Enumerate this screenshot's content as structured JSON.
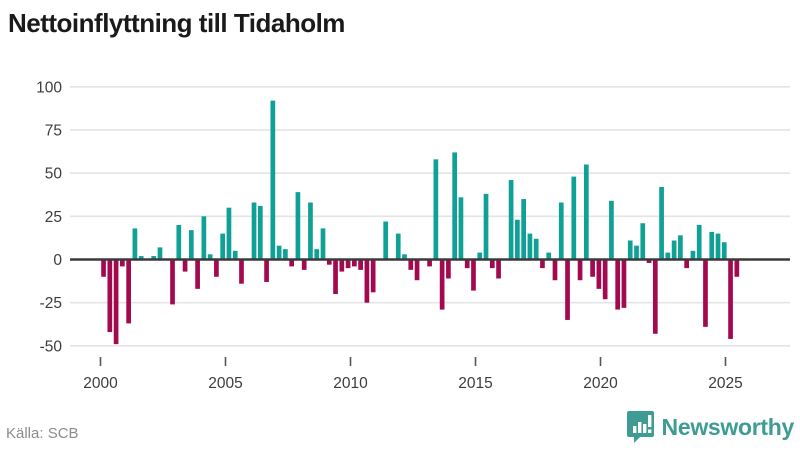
{
  "title": "Nettoinflyttning till Tidaholm",
  "source": "Källa: SCB",
  "brand": {
    "name": "Newsworthy",
    "color": "#3e9c95"
  },
  "colors": {
    "positive": "#0fa096",
    "negative": "#a3094f",
    "grid": "#e4e4e4",
    "zero_line": "#3a3a3a",
    "axis_text": "#3c3c3c",
    "tick": "#555555",
    "title_text": "#1a1a1a",
    "source_text": "#8c8c8c"
  },
  "chart_data": {
    "type": "bar",
    "title": "Nettoinflyttning till Tidaholm",
    "frequency": "quarterly",
    "start_period": "2000 Q1",
    "end_period": "2025 Q2",
    "xlabel": "",
    "ylabel": "",
    "grid": true,
    "legend": false,
    "ylim": [
      -50,
      100
    ],
    "y_ticks": [
      100,
      75,
      50,
      25,
      0,
      -25,
      -50
    ],
    "x_tick_labels": [
      "2000",
      "2005",
      "2010",
      "2015",
      "2020",
      "2025"
    ],
    "values": [
      -10,
      -42,
      -49,
      -4,
      -37,
      18,
      2,
      0,
      2,
      7,
      0,
      -26,
      20,
      -7,
      17,
      -17,
      25,
      3,
      -10,
      15,
      30,
      5,
      -14,
      0,
      33,
      31,
      -13,
      92,
      8,
      6,
      -4,
      39,
      -6,
      33,
      6,
      18,
      -3,
      -20,
      -7,
      -5,
      -4,
      -6,
      -25,
      -19,
      0,
      22,
      0,
      15,
      3,
      -6,
      -12,
      0,
      -4,
      58,
      -29,
      -11,
      62,
      36,
      -5,
      -18,
      4,
      38,
      -5,
      -11,
      0,
      46,
      23,
      35,
      15,
      12,
      -5,
      4,
      -12,
      33,
      -35,
      48,
      -12,
      55,
      -10,
      -17,
      -23,
      34,
      -29,
      -28,
      11,
      8,
      21,
      -2,
      -43,
      42,
      4,
      11,
      14,
      -5,
      5,
      20,
      -39,
      16,
      15,
      10,
      -46,
      -10
    ]
  }
}
